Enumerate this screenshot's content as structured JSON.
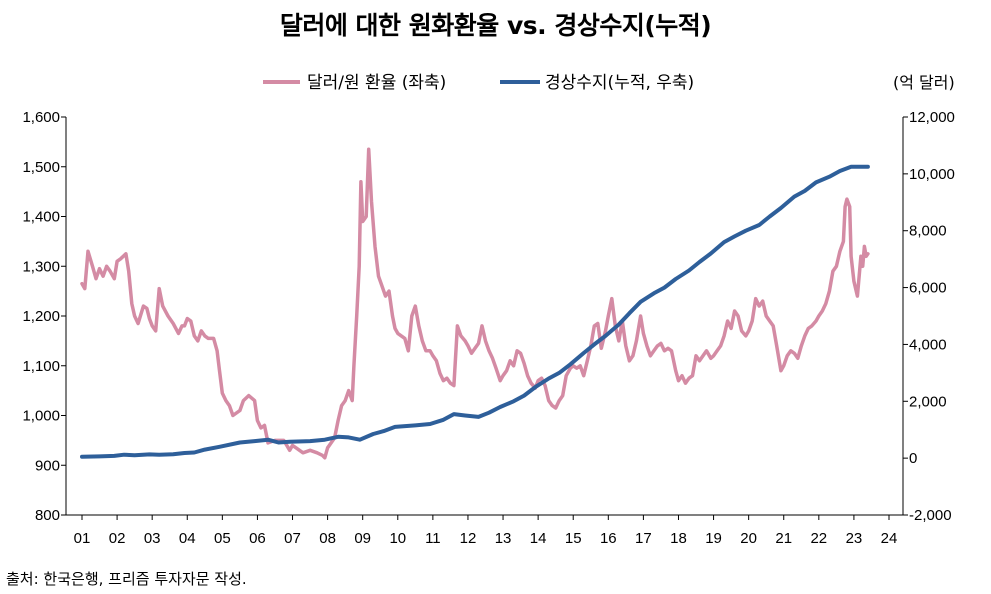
{
  "title": "달러에 대한 원화환율 vs. 경상수지(누적)",
  "source": "출처: 한국은행, 프리즘 투자자문 작성.",
  "chart_data": {
    "type": "line",
    "title": "달러에 대한 원화환율 vs. 경상수지(누적)",
    "right_axis_unit": "(억 달러)",
    "x_labels": [
      "01",
      "02",
      "03",
      "04",
      "05",
      "06",
      "07",
      "08",
      "09",
      "10",
      "11",
      "12",
      "13",
      "14",
      "15",
      "16",
      "17",
      "18",
      "19",
      "20",
      "21",
      "22",
      "23",
      "24"
    ],
    "xlim": [
      2001,
      2024
    ],
    "left_axis": {
      "ylim": [
        800,
        1600
      ],
      "ticks": [
        "800",
        "900",
        "1,000",
        "1,100",
        "1,200",
        "1,300",
        "1,400",
        "1,500",
        "1,600"
      ]
    },
    "right_axis": {
      "ylim": [
        -2000,
        12000
      ],
      "ticks": [
        "-2,000",
        "0",
        "2,000",
        "4,000",
        "6,000",
        "8,000",
        "10,000",
        "12,000"
      ]
    },
    "series": [
      {
        "name": "달러/원 환율 (좌축)",
        "axis": "left",
        "color": "#d48ba4",
        "points": [
          [
            2001.0,
            1265
          ],
          [
            2001.08,
            1255
          ],
          [
            2001.17,
            1330
          ],
          [
            2001.3,
            1300
          ],
          [
            2001.4,
            1275
          ],
          [
            2001.5,
            1295
          ],
          [
            2001.6,
            1280
          ],
          [
            2001.7,
            1300
          ],
          [
            2001.8,
            1290
          ],
          [
            2001.92,
            1275
          ],
          [
            2002.0,
            1310
          ],
          [
            2002.1,
            1315
          ],
          [
            2002.25,
            1325
          ],
          [
            2002.33,
            1290
          ],
          [
            2002.42,
            1225
          ],
          [
            2002.5,
            1200
          ],
          [
            2002.6,
            1185
          ],
          [
            2002.75,
            1220
          ],
          [
            2002.85,
            1215
          ],
          [
            2002.92,
            1195
          ],
          [
            2003.0,
            1180
          ],
          [
            2003.1,
            1170
          ],
          [
            2003.2,
            1255
          ],
          [
            2003.3,
            1220
          ],
          [
            2003.45,
            1200
          ],
          [
            2003.6,
            1185
          ],
          [
            2003.75,
            1165
          ],
          [
            2003.85,
            1180
          ],
          [
            2003.92,
            1180
          ],
          [
            2004.0,
            1195
          ],
          [
            2004.1,
            1190
          ],
          [
            2004.2,
            1160
          ],
          [
            2004.3,
            1150
          ],
          [
            2004.4,
            1170
          ],
          [
            2004.5,
            1160
          ],
          [
            2004.6,
            1155
          ],
          [
            2004.75,
            1155
          ],
          [
            2004.85,
            1130
          ],
          [
            2004.92,
            1090
          ],
          [
            2005.0,
            1045
          ],
          [
            2005.1,
            1030
          ],
          [
            2005.2,
            1020
          ],
          [
            2005.3,
            1000
          ],
          [
            2005.4,
            1005
          ],
          [
            2005.5,
            1010
          ],
          [
            2005.6,
            1030
          ],
          [
            2005.75,
            1040
          ],
          [
            2005.92,
            1030
          ],
          [
            2006.0,
            990
          ],
          [
            2006.1,
            975
          ],
          [
            2006.2,
            980
          ],
          [
            2006.3,
            945
          ],
          [
            2006.5,
            950
          ],
          [
            2006.75,
            950
          ],
          [
            2006.92,
            930
          ],
          [
            2007.0,
            940
          ],
          [
            2007.1,
            935
          ],
          [
            2007.3,
            925
          ],
          [
            2007.5,
            930
          ],
          [
            2007.7,
            925
          ],
          [
            2007.85,
            920
          ],
          [
            2007.92,
            915
          ],
          [
            2008.0,
            935
          ],
          [
            2008.1,
            945
          ],
          [
            2008.2,
            955
          ],
          [
            2008.3,
            990
          ],
          [
            2008.4,
            1020
          ],
          [
            2008.5,
            1030
          ],
          [
            2008.6,
            1050
          ],
          [
            2008.7,
            1030
          ],
          [
            2008.75,
            1100
          ],
          [
            2008.83,
            1200
          ],
          [
            2008.9,
            1300
          ],
          [
            2008.95,
            1470
          ],
          [
            2009.0,
            1390
          ],
          [
            2009.1,
            1400
          ],
          [
            2009.17,
            1535
          ],
          [
            2009.25,
            1430
          ],
          [
            2009.35,
            1340
          ],
          [
            2009.45,
            1280
          ],
          [
            2009.55,
            1260
          ],
          [
            2009.65,
            1240
          ],
          [
            2009.75,
            1250
          ],
          [
            2009.85,
            1200
          ],
          [
            2009.92,
            1175
          ],
          [
            2010.0,
            1165
          ],
          [
            2010.1,
            1160
          ],
          [
            2010.2,
            1155
          ],
          [
            2010.3,
            1130
          ],
          [
            2010.4,
            1200
          ],
          [
            2010.5,
            1220
          ],
          [
            2010.6,
            1180
          ],
          [
            2010.7,
            1150
          ],
          [
            2010.8,
            1130
          ],
          [
            2010.92,
            1130
          ],
          [
            2011.0,
            1120
          ],
          [
            2011.1,
            1110
          ],
          [
            2011.2,
            1085
          ],
          [
            2011.3,
            1070
          ],
          [
            2011.4,
            1075
          ],
          [
            2011.5,
            1065
          ],
          [
            2011.6,
            1060
          ],
          [
            2011.7,
            1180
          ],
          [
            2011.8,
            1160
          ],
          [
            2011.92,
            1150
          ],
          [
            2012.0,
            1140
          ],
          [
            2012.1,
            1125
          ],
          [
            2012.2,
            1135
          ],
          [
            2012.3,
            1145
          ],
          [
            2012.4,
            1180
          ],
          [
            2012.5,
            1150
          ],
          [
            2012.6,
            1130
          ],
          [
            2012.7,
            1115
          ],
          [
            2012.8,
            1095
          ],
          [
            2012.92,
            1070
          ],
          [
            2013.0,
            1080
          ],
          [
            2013.1,
            1090
          ],
          [
            2013.2,
            1110
          ],
          [
            2013.3,
            1100
          ],
          [
            2013.4,
            1130
          ],
          [
            2013.5,
            1125
          ],
          [
            2013.6,
            1105
          ],
          [
            2013.7,
            1080
          ],
          [
            2013.8,
            1065
          ],
          [
            2013.92,
            1055
          ],
          [
            2014.0,
            1070
          ],
          [
            2014.1,
            1075
          ],
          [
            2014.2,
            1060
          ],
          [
            2014.3,
            1030
          ],
          [
            2014.4,
            1020
          ],
          [
            2014.5,
            1015
          ],
          [
            2014.6,
            1030
          ],
          [
            2014.7,
            1040
          ],
          [
            2014.8,
            1080
          ],
          [
            2014.92,
            1095
          ],
          [
            2015.0,
            1100
          ],
          [
            2015.1,
            1095
          ],
          [
            2015.2,
            1100
          ],
          [
            2015.3,
            1080
          ],
          [
            2015.4,
            1110
          ],
          [
            2015.5,
            1140
          ],
          [
            2015.6,
            1180
          ],
          [
            2015.7,
            1185
          ],
          [
            2015.8,
            1135
          ],
          [
            2015.92,
            1170
          ],
          [
            2016.0,
            1200
          ],
          [
            2016.1,
            1235
          ],
          [
            2016.2,
            1180
          ],
          [
            2016.3,
            1150
          ],
          [
            2016.4,
            1190
          ],
          [
            2016.5,
            1140
          ],
          [
            2016.6,
            1110
          ],
          [
            2016.7,
            1120
          ],
          [
            2016.8,
            1150
          ],
          [
            2016.92,
            1200
          ],
          [
            2017.0,
            1165
          ],
          [
            2017.1,
            1140
          ],
          [
            2017.2,
            1120
          ],
          [
            2017.3,
            1130
          ],
          [
            2017.4,
            1140
          ],
          [
            2017.5,
            1145
          ],
          [
            2017.6,
            1130
          ],
          [
            2017.7,
            1135
          ],
          [
            2017.8,
            1130
          ],
          [
            2017.92,
            1090
          ],
          [
            2018.0,
            1070
          ],
          [
            2018.1,
            1080
          ],
          [
            2018.2,
            1065
          ],
          [
            2018.3,
            1075
          ],
          [
            2018.4,
            1080
          ],
          [
            2018.5,
            1120
          ],
          [
            2018.6,
            1110
          ],
          [
            2018.7,
            1120
          ],
          [
            2018.8,
            1130
          ],
          [
            2018.92,
            1115
          ],
          [
            2019.0,
            1120
          ],
          [
            2019.1,
            1130
          ],
          [
            2019.2,
            1140
          ],
          [
            2019.3,
            1160
          ],
          [
            2019.4,
            1190
          ],
          [
            2019.5,
            1175
          ],
          [
            2019.6,
            1210
          ],
          [
            2019.7,
            1200
          ],
          [
            2019.8,
            1170
          ],
          [
            2019.92,
            1160
          ],
          [
            2020.0,
            1170
          ],
          [
            2020.1,
            1190
          ],
          [
            2020.2,
            1235
          ],
          [
            2020.3,
            1220
          ],
          [
            2020.4,
            1230
          ],
          [
            2020.5,
            1200
          ],
          [
            2020.6,
            1190
          ],
          [
            2020.7,
            1180
          ],
          [
            2020.8,
            1140
          ],
          [
            2020.92,
            1090
          ],
          [
            2021.0,
            1100
          ],
          [
            2021.1,
            1120
          ],
          [
            2021.2,
            1130
          ],
          [
            2021.3,
            1125
          ],
          [
            2021.4,
            1115
          ],
          [
            2021.5,
            1140
          ],
          [
            2021.6,
            1160
          ],
          [
            2021.7,
            1175
          ],
          [
            2021.8,
            1180
          ],
          [
            2021.92,
            1190
          ],
          [
            2022.0,
            1200
          ],
          [
            2022.1,
            1210
          ],
          [
            2022.2,
            1225
          ],
          [
            2022.3,
            1250
          ],
          [
            2022.4,
            1290
          ],
          [
            2022.5,
            1300
          ],
          [
            2022.6,
            1330
          ],
          [
            2022.7,
            1350
          ],
          [
            2022.75,
            1420
          ],
          [
            2022.8,
            1435
          ],
          [
            2022.88,
            1420
          ],
          [
            2022.92,
            1320
          ],
          [
            2023.0,
            1270
          ],
          [
            2023.1,
            1240
          ],
          [
            2023.2,
            1320
          ],
          [
            2023.25,
            1300
          ],
          [
            2023.3,
            1340
          ],
          [
            2023.35,
            1320
          ],
          [
            2023.4,
            1325
          ]
        ]
      },
      {
        "name": "경상수지(누적, 우축)",
        "axis": "right",
        "color": "#2e5f9a",
        "points": [
          [
            2001.0,
            50
          ],
          [
            2001.5,
            60
          ],
          [
            2001.92,
            80
          ],
          [
            2002.2,
            120
          ],
          [
            2002.5,
            100
          ],
          [
            2002.92,
            130
          ],
          [
            2003.2,
            120
          ],
          [
            2003.6,
            140
          ],
          [
            2003.92,
            180
          ],
          [
            2004.2,
            200
          ],
          [
            2004.5,
            300
          ],
          [
            2004.92,
            400
          ],
          [
            2005.5,
            550
          ],
          [
            2005.92,
            600
          ],
          [
            2006.3,
            650
          ],
          [
            2006.6,
            550
          ],
          [
            2006.92,
            580
          ],
          [
            2007.5,
            600
          ],
          [
            2007.92,
            650
          ],
          [
            2008.3,
            750
          ],
          [
            2008.6,
            730
          ],
          [
            2008.92,
            650
          ],
          [
            2009.3,
            850
          ],
          [
            2009.6,
            950
          ],
          [
            2009.92,
            1100
          ],
          [
            2010.5,
            1150
          ],
          [
            2010.92,
            1200
          ],
          [
            2011.3,
            1350
          ],
          [
            2011.6,
            1550
          ],
          [
            2011.92,
            1500
          ],
          [
            2012.3,
            1450
          ],
          [
            2012.6,
            1600
          ],
          [
            2012.92,
            1800
          ],
          [
            2013.3,
            2000
          ],
          [
            2013.6,
            2200
          ],
          [
            2013.92,
            2500
          ],
          [
            2014.3,
            2800
          ],
          [
            2014.6,
            3000
          ],
          [
            2014.92,
            3300
          ],
          [
            2015.3,
            3700
          ],
          [
            2015.6,
            4000
          ],
          [
            2015.92,
            4300
          ],
          [
            2016.3,
            4700
          ],
          [
            2016.6,
            5100
          ],
          [
            2016.92,
            5500
          ],
          [
            2017.3,
            5800
          ],
          [
            2017.6,
            6000
          ],
          [
            2017.92,
            6300
          ],
          [
            2018.3,
            6600
          ],
          [
            2018.6,
            6900
          ],
          [
            2018.92,
            7200
          ],
          [
            2019.3,
            7600
          ],
          [
            2019.6,
            7800
          ],
          [
            2019.92,
            8000
          ],
          [
            2020.3,
            8200
          ],
          [
            2020.6,
            8500
          ],
          [
            2020.92,
            8800
          ],
          [
            2021.3,
            9200
          ],
          [
            2021.6,
            9400
          ],
          [
            2021.92,
            9700
          ],
          [
            2022.3,
            9900
          ],
          [
            2022.6,
            10100
          ],
          [
            2022.92,
            10250
          ],
          [
            2023.2,
            10250
          ],
          [
            2023.4,
            10250
          ]
        ]
      }
    ]
  }
}
